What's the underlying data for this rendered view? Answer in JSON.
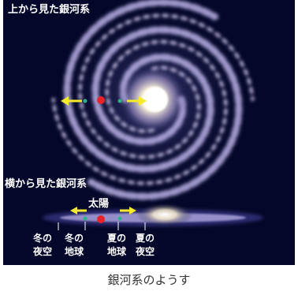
{
  "figure": {
    "top_view_label": "上から見た銀河系",
    "side_view_label": "横から見た銀河系",
    "sun_label": "太陽",
    "positions": [
      {
        "line1": "冬の",
        "line2": "夜空"
      },
      {
        "line1": "冬の",
        "line2": "地球"
      },
      {
        "line1": "夏の",
        "line2": "地球"
      },
      {
        "line1": "夏の",
        "line2": "夜空"
      }
    ],
    "caption": "銀河系のようす"
  },
  "colors": {
    "background": "#05072a",
    "arrow": "#f6ea2a",
    "sun_marker": "#e8232a",
    "earth_marker": "#2db38a"
  }
}
